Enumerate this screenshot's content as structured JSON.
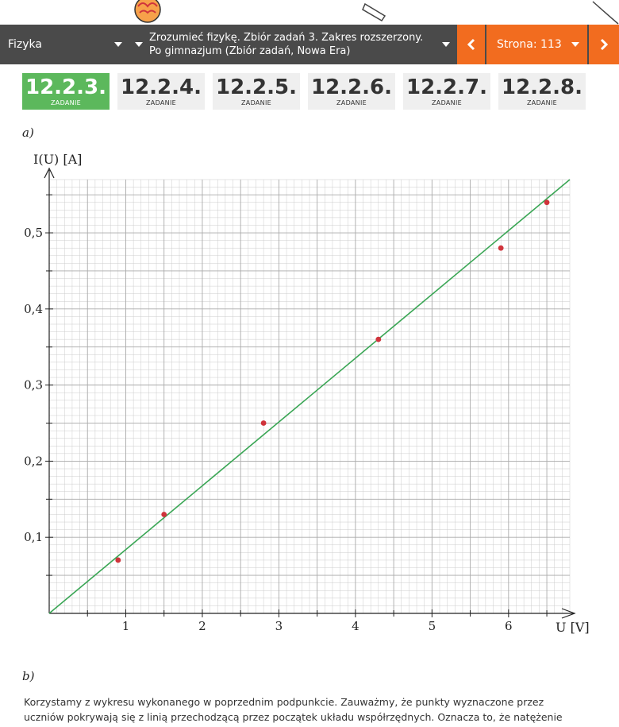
{
  "nav": {
    "subject": "Fizyka",
    "book": "Zrozumieć fizykę. Zbiór zadań 3. Zakres rozszerzony. Po gimnazjum (Zbiór zadań, Nowa Era)",
    "page": "Strona: 113",
    "prev_icon": "chevron-left-icon",
    "next_icon": "chevron-right-icon"
  },
  "tabs": [
    {
      "number": "12.2.3.",
      "label": "ZADANIE",
      "active": true
    },
    {
      "number": "12.2.4.",
      "label": "ZADANIE",
      "active": false
    },
    {
      "number": "12.2.5.",
      "label": "ZADANIE",
      "active": false
    },
    {
      "number": "12.2.6.",
      "label": "ZADANIE",
      "active": false
    },
    {
      "number": "12.2.7.",
      "label": "ZADANIE",
      "active": false
    },
    {
      "number": "12.2.8.",
      "label": "ZADANIE",
      "active": false
    }
  ],
  "parts": {
    "a": "a)",
    "b": "b)"
  },
  "chart_data": {
    "type": "scatter",
    "title": "",
    "xlabel": "U [V]",
    "ylabel": "I(U) [A]",
    "xlim": [
      0,
      6.8
    ],
    "ylim": [
      0,
      0.57
    ],
    "x_ticks": [
      1,
      2,
      3,
      4,
      5,
      6
    ],
    "x_tick_labels": [
      "1",
      "2",
      "3",
      "4",
      "5",
      "6"
    ],
    "y_ticks": [
      0.1,
      0.2,
      0.3,
      0.4,
      0.5
    ],
    "y_tick_labels": [
      "0,1",
      "0,2",
      "0,3",
      "0,4",
      "0,5"
    ],
    "grid": true,
    "points": [
      {
        "x": 0.9,
        "y": 0.07
      },
      {
        "x": 1.5,
        "y": 0.13
      },
      {
        "x": 2.8,
        "y": 0.25
      },
      {
        "x": 4.3,
        "y": 0.36
      },
      {
        "x": 5.9,
        "y": 0.48
      },
      {
        "x": 6.5,
        "y": 0.54
      }
    ],
    "fit_line": {
      "x": [
        0,
        6.8
      ],
      "y": [
        0,
        0.57
      ]
    },
    "colors": {
      "points": "#d0343c",
      "line": "#3aa655",
      "grid": "#cccccc"
    }
  },
  "text": {
    "line1": "Korzystamy z wykresu wykonanego w poprzednim podpunkcie. Zauważmy, że punkty wyznaczone przez",
    "line2": "uczniów pokrywają się z linią przechodzącą przez początek układu współrzędnych. Oznacza to, że natężenie"
  },
  "colors": {
    "accent": "#f26c1f",
    "active_tab": "#5cb85c",
    "nav_bg": "#4a4a4a"
  }
}
